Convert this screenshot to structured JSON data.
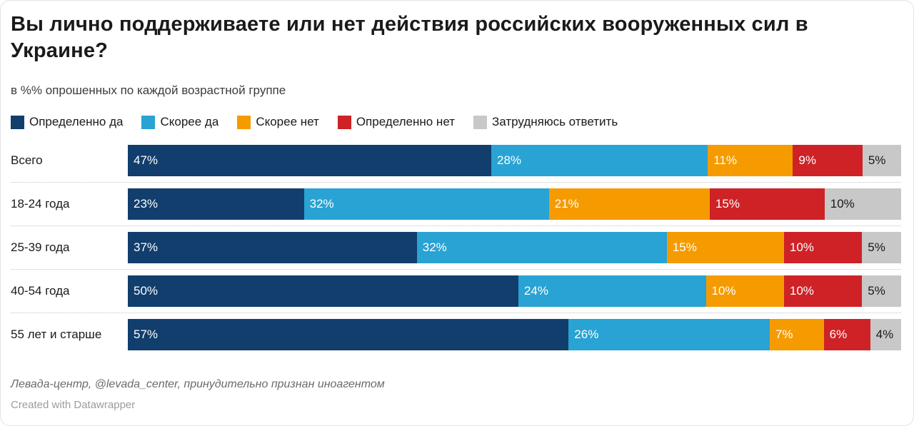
{
  "header": {
    "title": "Вы лично поддерживаете или нет действия российских вооруженных сил в Украине?",
    "subtitle": "в %% опрошенных по каждой возрастной группе"
  },
  "legend": [
    {
      "label": "Определенно да",
      "color": "#113e6d",
      "text_color": "#ffffff"
    },
    {
      "label": "Скорее да",
      "color": "#29a3d3",
      "text_color": "#ffffff"
    },
    {
      "label": "Скорее нет",
      "color": "#f59b00",
      "text_color": "#ffffff"
    },
    {
      "label": "Определенно нет",
      "color": "#ce2227",
      "text_color": "#ffffff"
    },
    {
      "label": "Затрудняюсь ответить",
      "color": "#c8c8c8",
      "text_color": "#1a1a1a"
    }
  ],
  "chart_data": {
    "type": "bar",
    "stacked": true,
    "orientation": "horizontal",
    "title": "Вы лично поддерживаете или нет действия российских вооруженных сил в Украине?",
    "subtitle": "в %% опрошенных по каждой возрастной группе",
    "value_suffix": "%",
    "legend_position": "top",
    "categories": [
      "Всего",
      "18-24 года",
      "25-39 года",
      "40-54 года",
      "55 лет и старше"
    ],
    "series": [
      {
        "name": "Определенно да",
        "color": "#113e6d",
        "values": [
          47,
          23,
          37,
          50,
          57
        ]
      },
      {
        "name": "Скорее да",
        "color": "#29a3d3",
        "values": [
          28,
          32,
          32,
          24,
          26
        ]
      },
      {
        "name": "Скорее нет",
        "color": "#f59b00",
        "values": [
          11,
          21,
          15,
          10,
          7
        ]
      },
      {
        "name": "Определенно нет",
        "color": "#ce2227",
        "values": [
          9,
          15,
          10,
          10,
          6
        ]
      },
      {
        "name": "Затрудняюсь ответить",
        "color": "#c8c8c8",
        "values": [
          5,
          10,
          5,
          5,
          4
        ]
      }
    ]
  },
  "footer": {
    "source": "Левада-центр, @levada_center, принудительно признан иноагентом",
    "attribution": "Created with Datawrapper"
  }
}
